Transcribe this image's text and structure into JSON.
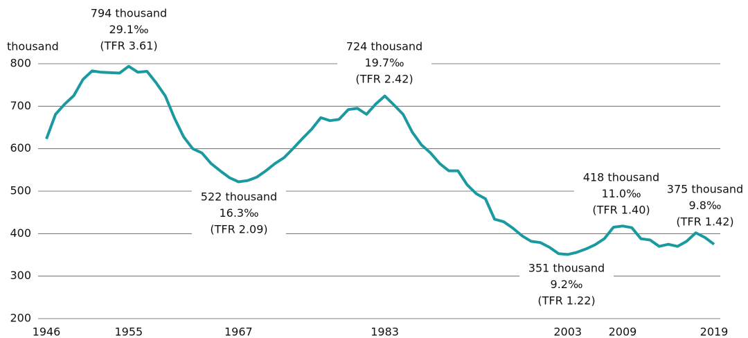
{
  "chart_data": {
    "type": "line",
    "y_axis_label": "thousand",
    "x": [
      1946,
      1947,
      1948,
      1949,
      1950,
      1951,
      1952,
      1953,
      1954,
      1955,
      1956,
      1957,
      1958,
      1959,
      1960,
      1961,
      1962,
      1963,
      1964,
      1965,
      1966,
      1967,
      1968,
      1969,
      1970,
      1971,
      1972,
      1973,
      1974,
      1975,
      1976,
      1977,
      1978,
      1979,
      1980,
      1981,
      1982,
      1983,
      1984,
      1985,
      1986,
      1987,
      1988,
      1989,
      1990,
      1991,
      1992,
      1993,
      1994,
      1995,
      1996,
      1997,
      1998,
      1999,
      2000,
      2001,
      2002,
      2003,
      2004,
      2005,
      2006,
      2007,
      2008,
      2009,
      2010,
      2011,
      2012,
      2013,
      2014,
      2015,
      2016,
      2017,
      2018,
      2019
    ],
    "series": [
      {
        "color": "#1a9aa0",
        "values": [
          623,
          681,
          705,
          725,
          763,
          783,
          780,
          779,
          778,
          794,
          780,
          782,
          755,
          724,
          672,
          628,
          600,
          590,
          565,
          548,
          532,
          522,
          525,
          533,
          548,
          565,
          579,
          601,
          624,
          646,
          673,
          666,
          669,
          692,
          695,
          681,
          705,
          724,
          703,
          681,
          639,
          609,
          590,
          565,
          548,
          548,
          515,
          494,
          482,
          434,
          428,
          413,
          395,
          382,
          379,
          368,
          353,
          351,
          356,
          364,
          374,
          388,
          415,
          418,
          414,
          388,
          385,
          370,
          375,
          370,
          382,
          402,
          391,
          375
        ]
      }
    ],
    "xlim": [
      1946,
      2019
    ],
    "xticks": [
      1946,
      1955,
      1967,
      1983,
      2003,
      2009,
      2019
    ],
    "ylim": [
      200,
      800
    ],
    "yticks": [
      200,
      300,
      400,
      500,
      600,
      700,
      800
    ],
    "grid": true,
    "annotations": [
      [
        "794 thousand",
        "29.1‰",
        "(TFR 3.61)"
      ],
      [
        "724 thousand",
        "19.7‰",
        "(TFR 2.42)"
      ],
      [
        "522 thousand",
        "16.3‰",
        "(TFR 2.09)"
      ],
      [
        "351 thousand",
        "9.2‰",
        "(TFR 1.22)"
      ],
      [
        "418 thousand",
        "11.0‰",
        "(TFR 1.40)"
      ],
      [
        "375 thousand",
        "9.8‰",
        "(TFR 1.42)"
      ]
    ]
  }
}
